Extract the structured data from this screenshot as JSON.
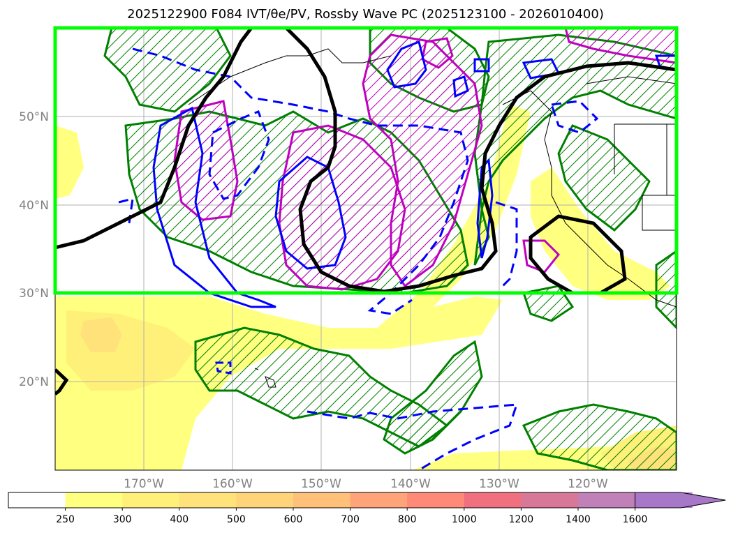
{
  "title": "2025122900 F084 IVT/θe/PV, Rossby Wave PC (2025123100 - 2026010400)",
  "map": {
    "lon_range": [
      -180,
      -110
    ],
    "lat_range": [
      10,
      60
    ],
    "lat_ticks": [
      {
        "value": 20,
        "label": "20°N"
      },
      {
        "value": 30,
        "label": "30°N"
      },
      {
        "value": 40,
        "label": "40°N"
      },
      {
        "value": 50,
        "label": "50°N"
      }
    ],
    "lon_ticks": [
      {
        "value": -170,
        "label": "170°W"
      },
      {
        "value": -160,
        "label": "160°W"
      },
      {
        "value": -150,
        "label": "150°W"
      },
      {
        "value": -140,
        "label": "140°W"
      },
      {
        "value": -130,
        "label": "130°W"
      },
      {
        "value": -120,
        "label": "120°W"
      }
    ],
    "highlight_box": {
      "lon": [
        -180,
        -110
      ],
      "lat": [
        30,
        60
      ],
      "color": "#00ff00"
    },
    "colors": {
      "grid": "#b0b0b0",
      "green_contour": "#008000",
      "blue_contour": "#0000ff",
      "magenta_contour": "#c000c0",
      "black_contour": "#000000"
    }
  },
  "colorbar": {
    "levels": [
      "250",
      "300",
      "400",
      "500",
      "600",
      "700",
      "800",
      "1000",
      "1200",
      "1400",
      "1600"
    ],
    "colors": [
      "#ffffff",
      "#ffff80",
      "#fff07a",
      "#ffe27a",
      "#ffd37a",
      "#ffc07a",
      "#ffa478",
      "#ff8a78",
      "#f07080",
      "#d87898",
      "#c080b8",
      "#a878c8"
    ],
    "extend": "max"
  }
}
